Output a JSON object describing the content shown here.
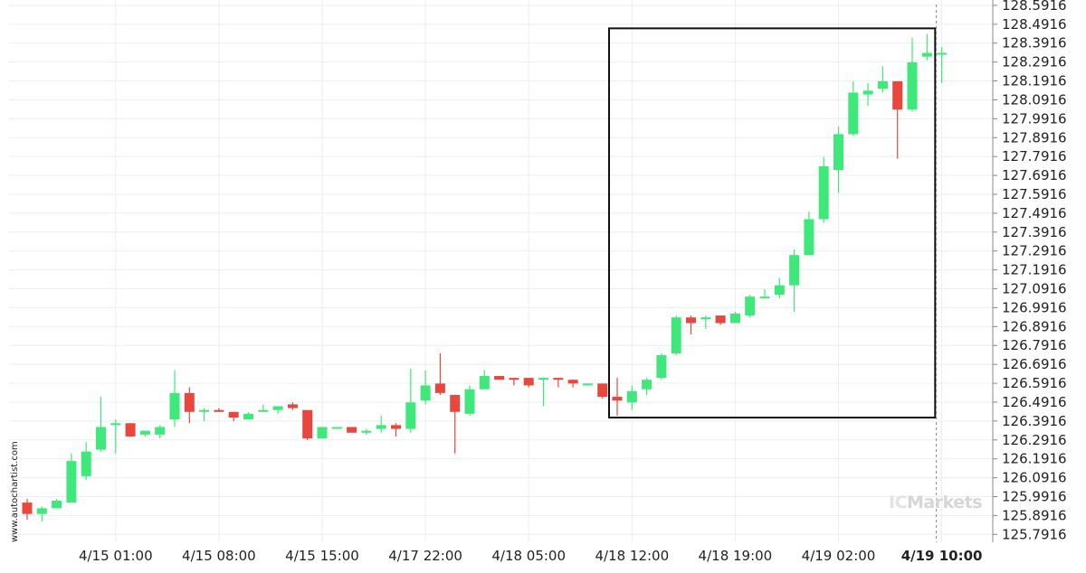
{
  "chart_data": {
    "type": "candlestick",
    "y_ticks": [
      "128.5916",
      "128.4916",
      "128.3916",
      "128.2916",
      "128.1916",
      "128.0916",
      "127.9916",
      "127.8916",
      "127.7916",
      "127.6916",
      "127.5916",
      "127.4916",
      "127.3916",
      "127.2916",
      "127.1916",
      "127.0916",
      "126.9916",
      "126.8916",
      "126.7916",
      "126.6916",
      "126.5916",
      "126.4916",
      "126.3916",
      "126.2916",
      "126.1916",
      "126.0916",
      "125.9916",
      "125.8916",
      "125.7916"
    ],
    "x_ticks": [
      {
        "label": "4/15 01:00",
        "index": 6
      },
      {
        "label": "4/15 08:00",
        "index": 13
      },
      {
        "label": "4/15 15:00",
        "index": 20
      },
      {
        "label": "4/17 22:00",
        "index": 27
      },
      {
        "label": "4/18 05:00",
        "index": 34
      },
      {
        "label": "4/18 12:00",
        "index": 41
      },
      {
        "label": "4/18 19:00",
        "index": 48
      },
      {
        "label": "4/19 02:00",
        "index": 55
      },
      {
        "label": "4/19 10:00",
        "index": 62,
        "bold": true
      }
    ],
    "highlight": {
      "from_index": 40,
      "to_index": 61,
      "low": 126.41,
      "high": 128.47
    },
    "current_marker_index": 62,
    "ylim": [
      125.75,
      128.62
    ],
    "candles": [
      [
        125.96,
        125.9,
        125.98,
        125.87
      ],
      [
        125.9,
        125.93,
        125.94,
        125.86
      ],
      [
        125.93,
        125.97,
        125.98,
        125.93
      ],
      [
        125.96,
        126.18,
        126.22,
        125.96
      ],
      [
        126.1,
        126.23,
        126.28,
        126.08
      ],
      [
        126.24,
        126.36,
        126.52,
        126.23
      ],
      [
        126.37,
        126.38,
        126.4,
        126.22
      ],
      [
        126.38,
        126.31,
        126.38,
        126.31
      ],
      [
        126.32,
        126.34,
        126.34,
        126.31
      ],
      [
        126.32,
        126.36,
        126.37,
        126.3
      ],
      [
        126.4,
        126.54,
        126.66,
        126.36
      ],
      [
        126.54,
        126.44,
        126.57,
        126.38
      ],
      [
        126.44,
        126.45,
        126.46,
        126.39
      ],
      [
        126.45,
        126.44,
        126.46,
        126.44
      ],
      [
        126.44,
        126.41,
        126.44,
        126.39
      ],
      [
        126.4,
        126.43,
        126.44,
        126.4
      ],
      [
        126.44,
        126.45,
        126.48,
        126.44
      ],
      [
        126.45,
        126.47,
        126.47,
        126.43
      ],
      [
        126.48,
        126.46,
        126.49,
        126.45
      ],
      [
        126.45,
        126.3,
        126.44,
        126.29
      ],
      [
        126.3,
        126.36,
        126.36,
        126.3
      ],
      [
        126.36,
        126.36,
        126.36,
        126.36
      ],
      [
        126.36,
        126.33,
        126.36,
        126.33
      ],
      [
        126.33,
        126.34,
        126.35,
        126.32
      ],
      [
        126.35,
        126.37,
        126.42,
        126.33
      ],
      [
        126.37,
        126.35,
        126.38,
        126.31
      ],
      [
        126.35,
        126.49,
        126.67,
        126.33
      ],
      [
        126.5,
        126.58,
        126.66,
        126.48
      ],
      [
        126.59,
        126.54,
        126.75,
        126.53
      ],
      [
        126.53,
        126.44,
        126.53,
        126.22
      ],
      [
        126.43,
        126.56,
        126.58,
        126.42
      ],
      [
        126.56,
        126.63,
        126.66,
        126.56
      ],
      [
        126.63,
        126.61,
        126.63,
        126.61
      ],
      [
        126.62,
        126.61,
        126.62,
        126.58
      ],
      [
        126.62,
        126.58,
        126.62,
        126.57
      ],
      [
        126.61,
        126.62,
        126.62,
        126.47
      ],
      [
        126.62,
        126.61,
        126.62,
        126.57
      ],
      [
        126.61,
        126.59,
        126.61,
        126.57
      ],
      [
        126.59,
        126.59,
        126.59,
        126.58
      ],
      [
        126.59,
        126.52,
        126.59,
        126.51
      ],
      [
        126.52,
        126.5,
        126.62,
        126.42
      ],
      [
        126.49,
        126.55,
        126.58,
        126.45
      ],
      [
        126.56,
        126.61,
        126.62,
        126.53
      ],
      [
        126.62,
        126.74,
        126.75,
        126.61
      ],
      [
        126.75,
        126.94,
        126.95,
        126.74
      ],
      [
        126.94,
        126.91,
        126.95,
        126.85
      ],
      [
        126.93,
        126.94,
        126.95,
        126.88
      ],
      [
        126.95,
        126.91,
        126.95,
        126.9
      ],
      [
        126.91,
        126.96,
        126.97,
        126.91
      ],
      [
        126.95,
        127.05,
        127.06,
        126.94
      ],
      [
        127.05,
        127.05,
        127.09,
        127.04
      ],
      [
        127.06,
        127.11,
        127.15,
        127.04
      ],
      [
        127.11,
        127.27,
        127.3,
        126.97
      ],
      [
        127.27,
        127.46,
        127.5,
        127.27
      ],
      [
        127.46,
        127.74,
        127.79,
        127.44
      ],
      [
        127.72,
        127.91,
        127.95,
        127.6
      ],
      [
        127.91,
        128.13,
        128.19,
        127.9
      ],
      [
        128.12,
        128.14,
        128.18,
        128.06
      ],
      [
        128.15,
        128.19,
        128.27,
        128.13
      ],
      [
        128.19,
        128.04,
        128.19,
        127.78
      ],
      [
        128.04,
        128.29,
        128.42,
        128.03
      ],
      [
        128.32,
        128.34,
        128.44,
        128.3
      ],
      [
        128.34,
        128.34,
        128.37,
        128.18
      ]
    ]
  },
  "watermark": {
    "site": "www.autochartist.com",
    "brand_prefix": "IC",
    "brand_name": "Markets"
  }
}
